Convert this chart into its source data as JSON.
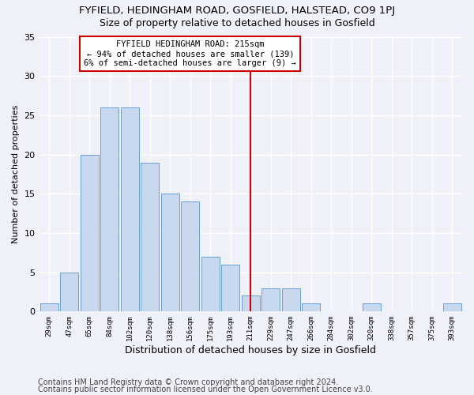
{
  "title1": "FYFIELD, HEDINGHAM ROAD, GOSFIELD, HALSTEAD, CO9 1PJ",
  "title2": "Size of property relative to detached houses in Gosfield",
  "xlabel": "Distribution of detached houses by size in Gosfield",
  "ylabel": "Number of detached properties",
  "categories": [
    "29sqm",
    "47sqm",
    "65sqm",
    "84sqm",
    "102sqm",
    "120sqm",
    "138sqm",
    "156sqm",
    "175sqm",
    "193sqm",
    "211sqm",
    "229sqm",
    "247sqm",
    "266sqm",
    "284sqm",
    "302sqm",
    "320sqm",
    "338sqm",
    "357sqm",
    "375sqm",
    "393sqm"
  ],
  "values": [
    1,
    5,
    20,
    26,
    26,
    19,
    15,
    14,
    7,
    6,
    2,
    3,
    3,
    1,
    0,
    0,
    1,
    0,
    0,
    0,
    1
  ],
  "bar_color": "#c8d8ee",
  "bar_edge_color": "#6a9fd4",
  "vline_x_index": 10,
  "vline_color": "#cc0000",
  "annotation_title": "FYFIELD HEDINGHAM ROAD: 215sqm",
  "annotation_line1": "← 94% of detached houses are smaller (139)",
  "annotation_line2": "6% of semi-detached houses are larger (9) →",
  "annotation_box_color": "#ffffff",
  "annotation_box_edge": "#cc0000",
  "ylim": [
    0,
    35
  ],
  "yticks": [
    0,
    5,
    10,
    15,
    20,
    25,
    30,
    35
  ],
  "footer1": "Contains HM Land Registry data © Crown copyright and database right 2024.",
  "footer2": "Contains public sector information licensed under the Open Government Licence v3.0.",
  "bg_color": "#eef2f8",
  "plot_bg_color": "#eef2f8",
  "grid_color": "#ffffff",
  "title1_fontsize": 9.5,
  "title2_fontsize": 9,
  "xlabel_fontsize": 9,
  "ylabel_fontsize": 8,
  "footer_fontsize": 7
}
